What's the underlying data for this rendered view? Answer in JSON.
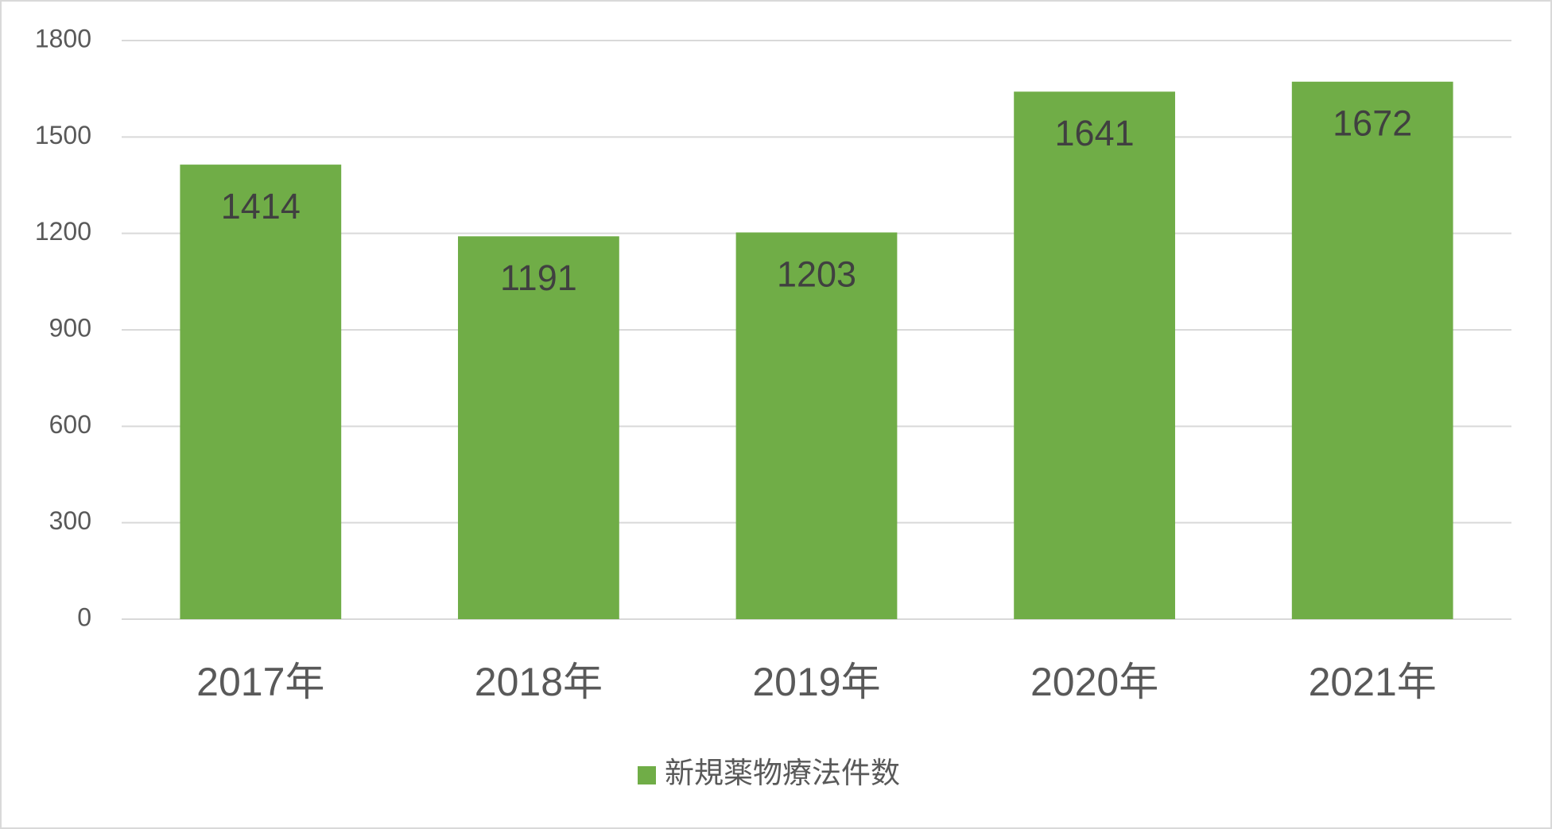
{
  "chart_data": {
    "type": "bar",
    "categories": [
      "2017年",
      "2018年",
      "2019年",
      "2020年",
      "2021年"
    ],
    "series": [
      {
        "name": "新規薬物療法件数",
        "color": "#70ad47",
        "values": [
          1414,
          1191,
          1203,
          1641,
          1672
        ]
      }
    ],
    "ylim": [
      0,
      1800
    ],
    "yticks": [
      0,
      300,
      600,
      900,
      1200,
      1500,
      1800
    ],
    "grid": true,
    "legend": "bottom"
  }
}
